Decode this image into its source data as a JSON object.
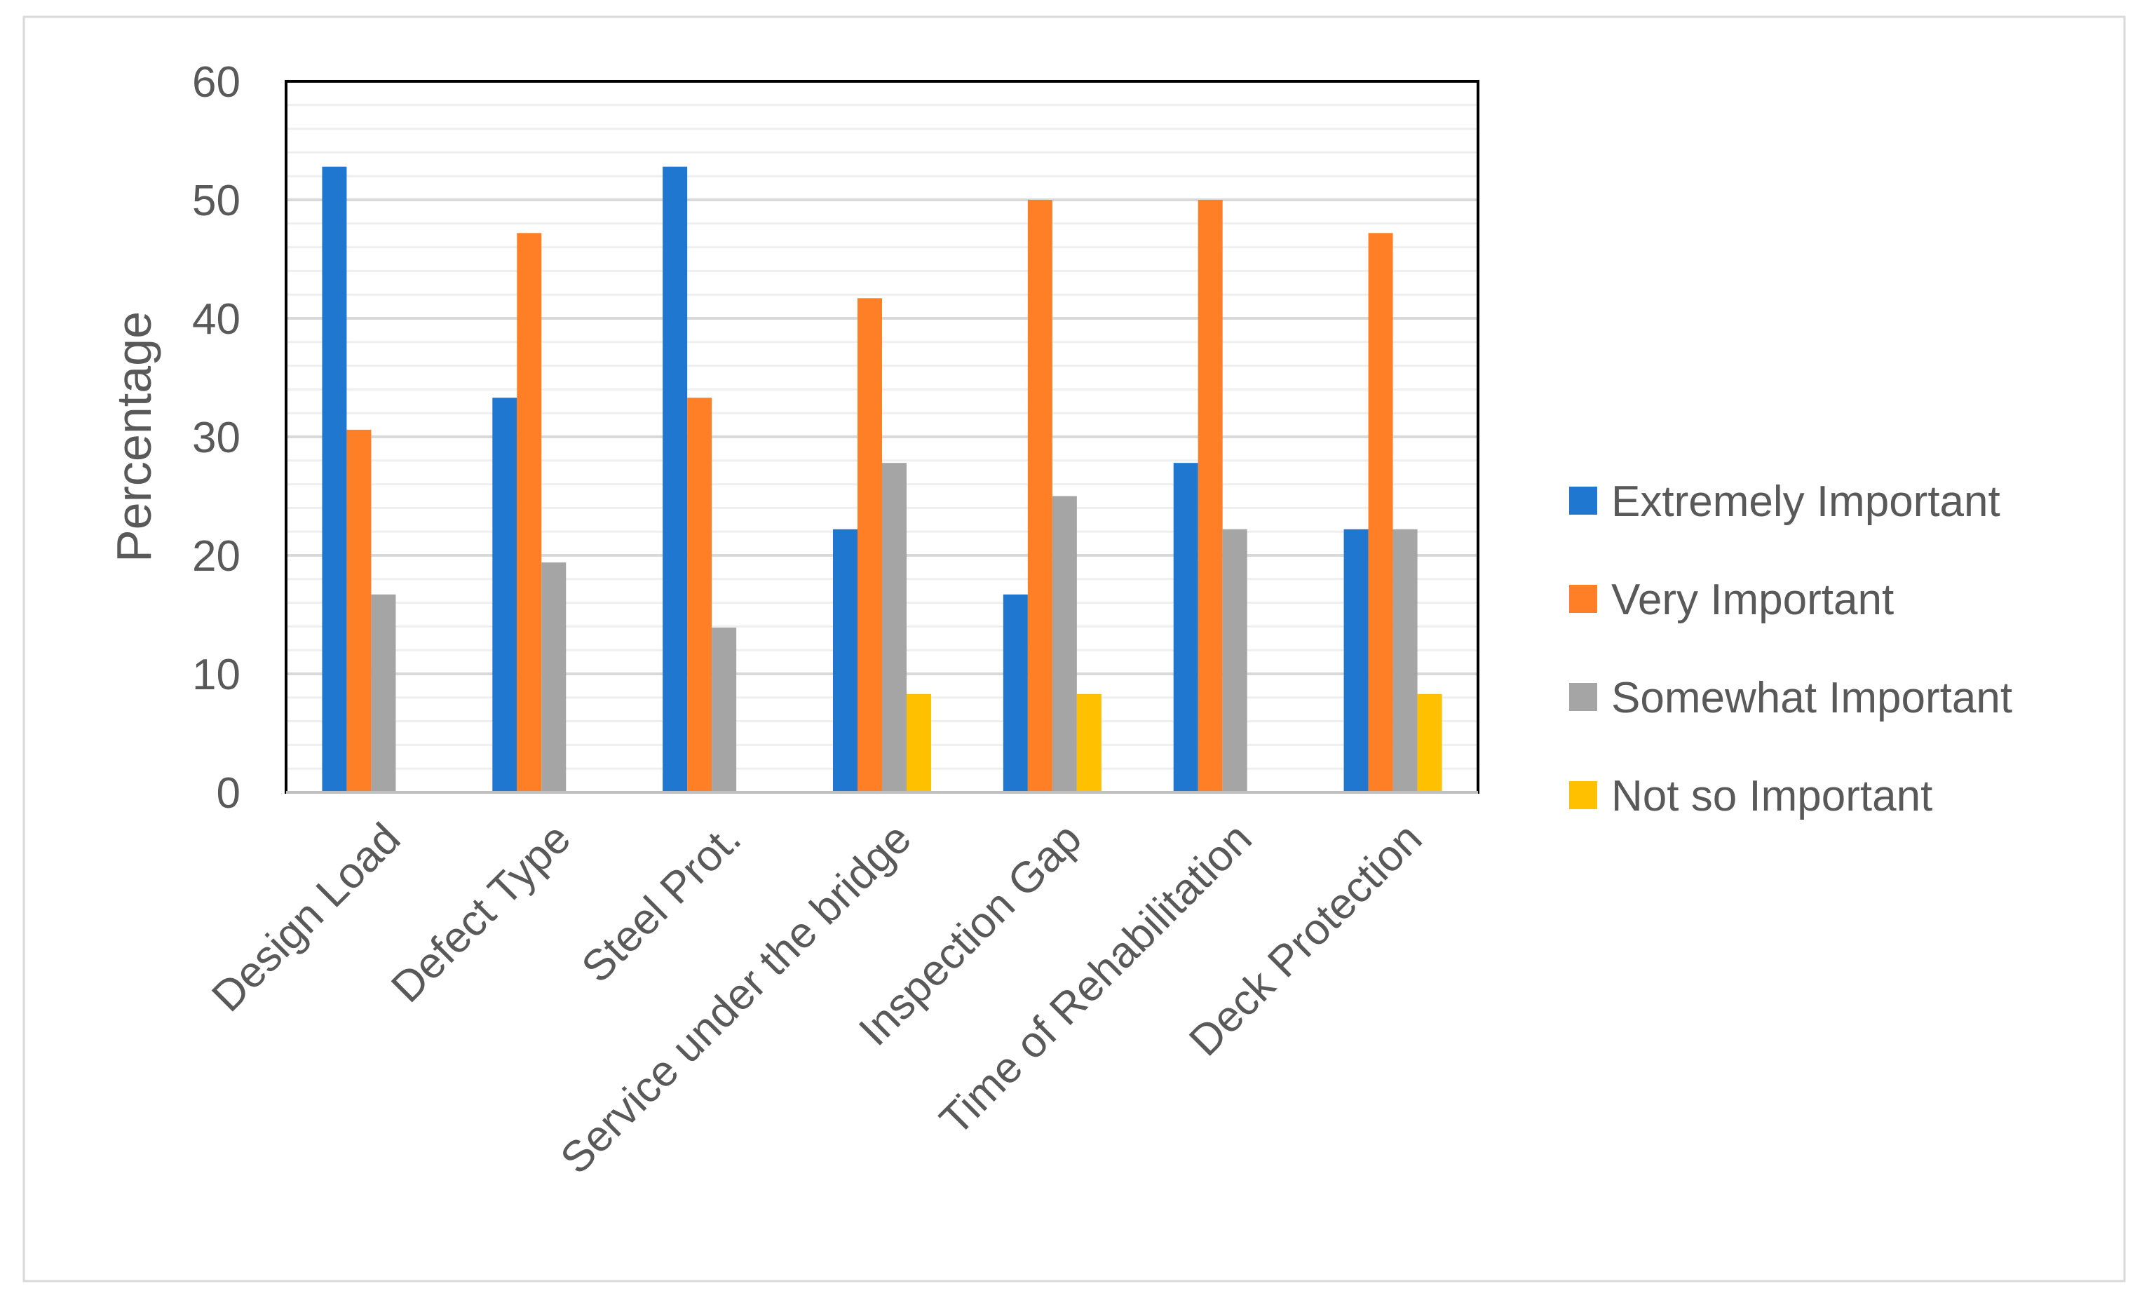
{
  "chart_data": {
    "type": "bar",
    "title": "",
    "xlabel": "",
    "ylabel": "Percentage",
    "ylim": [
      0,
      60
    ],
    "yticks": [
      0,
      10,
      20,
      30,
      40,
      50,
      60
    ],
    "grid": true,
    "legend_position": "right",
    "categories": [
      "Design Load",
      "Defect Type",
      "Steel Prot.",
      "Service under the bridge",
      "Inspection Gap",
      "Time of Rehabilitation",
      "Deck Protection"
    ],
    "series": [
      {
        "name": "Extremely Important",
        "color": "#1F77D0",
        "values": [
          52.8,
          33.3,
          52.8,
          22.2,
          16.7,
          27.8,
          22.2
        ]
      },
      {
        "name": "Very Important",
        "color": "#FF7F27",
        "values": [
          30.6,
          47.2,
          33.3,
          41.7,
          50.0,
          50.0,
          47.2
        ]
      },
      {
        "name": "Somewhat Important",
        "color": "#A5A5A5",
        "values": [
          16.7,
          19.4,
          13.9,
          27.8,
          25.0,
          22.2,
          22.2
        ]
      },
      {
        "name": "Not so Important",
        "color": "#FFC000",
        "values": [
          0,
          0,
          0,
          8.3,
          8.3,
          0,
          8.3
        ]
      }
    ]
  }
}
